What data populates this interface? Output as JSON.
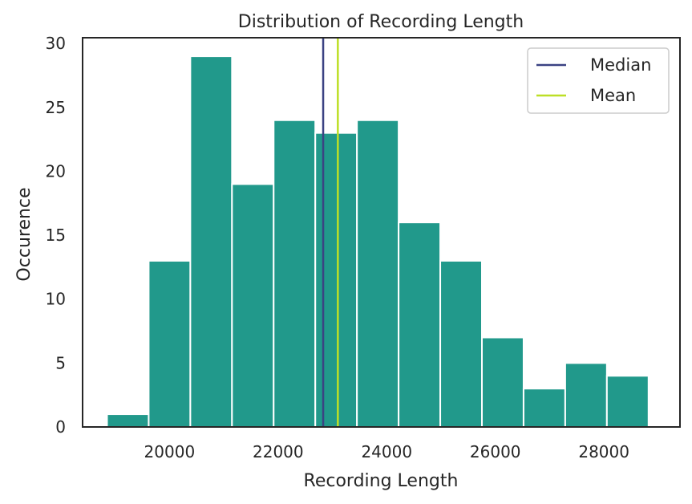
{
  "chart_data": {
    "type": "bar",
    "title": "Distribution of Recording Length",
    "xlabel": "Recording Length",
    "ylabel": "Occurence",
    "xlim": [
      18400,
      29400
    ],
    "ylim": [
      0,
      30.45
    ],
    "xticks": [
      20000,
      22000,
      24000,
      26000,
      28000
    ],
    "yticks": [
      0,
      5,
      10,
      15,
      20,
      25,
      30
    ],
    "bin_edges": [
      18850,
      19617,
      20384,
      21151,
      21918,
      22685,
      23452,
      24219,
      24986,
      25753,
      26520,
      27287,
      28054,
      28821
    ],
    "values": [
      1,
      13,
      29,
      19,
      24,
      23,
      24,
      16,
      13,
      7,
      3,
      5,
      4
    ],
    "bar_color": "#21998b",
    "lines": [
      {
        "name": "Median",
        "x": 22830,
        "color": "#3b4283"
      },
      {
        "name": "Mean",
        "x": 23100,
        "color": "#bddf26"
      }
    ],
    "legend": {
      "position": "top-right",
      "entries": [
        "Median",
        "Mean"
      ]
    },
    "grid": false
  }
}
